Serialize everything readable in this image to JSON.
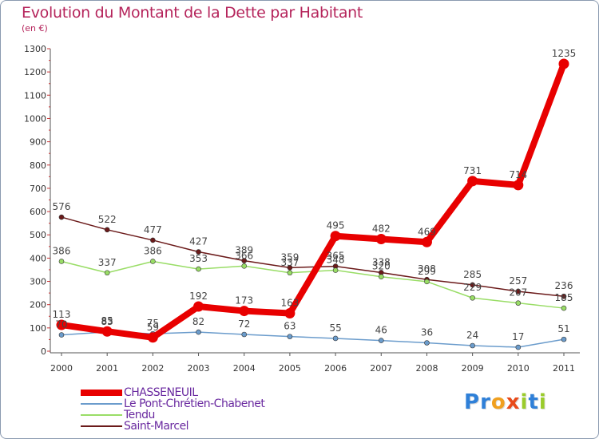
{
  "chart_data": {
    "type": "line",
    "title": "Evolution du Montant de la Dette par Habitant",
    "subtitle": "(en €)",
    "categories": [
      "2000",
      "2001",
      "2002",
      "2003",
      "2004",
      "2005",
      "2006",
      "2007",
      "2008",
      "2009",
      "2010",
      "2011"
    ],
    "ylim": [
      0,
      1300
    ],
    "yticks": [
      0,
      100,
      200,
      300,
      400,
      500,
      600,
      700,
      800,
      900,
      1000,
      1100,
      1200,
      1300
    ],
    "grid": false,
    "legend_position": "bottom-left",
    "series": [
      {
        "name": "CHASSENEUIL",
        "color": "#e80000",
        "values": [
          113,
          85,
          59,
          192,
          173,
          163,
          495,
          482,
          469,
          731,
          714,
          1235
        ]
      },
      {
        "name": "Le Pont-Chrétien-Chabenet",
        "color": "#6b9ccc",
        "values": [
          70,
          83,
          75,
          82,
          72,
          63,
          55,
          46,
          36,
          24,
          17,
          51
        ]
      },
      {
        "name": "Tendu",
        "color": "#99dd66",
        "values": [
          386,
          337,
          386,
          353,
          366,
          337,
          348,
          320,
          299,
          229,
          207,
          185
        ]
      },
      {
        "name": "Saint-Marcel",
        "color": "#6b1a1a",
        "values": [
          576,
          522,
          477,
          427,
          389,
          359,
          365,
          338,
          308,
          285,
          257,
          236
        ]
      }
    ],
    "data_labels": [
      {
        "series": 0,
        "labels": [
          "113",
          "85",
          "59",
          "192",
          "173",
          "163",
          "495",
          "482",
          "469",
          "731",
          "714",
          "1235"
        ]
      },
      {
        "series": 1,
        "labels": [
          "70",
          "83",
          "75",
          "82",
          "72",
          "63",
          "55",
          "46",
          "36",
          "24",
          "17",
          "51"
        ]
      },
      {
        "series": 2,
        "labels": [
          "386",
          "337",
          "386",
          "353",
          "366",
          "337",
          "348",
          "320",
          "299",
          "229",
          "207",
          "185"
        ]
      },
      {
        "series": 3,
        "labels": [
          "576",
          "522",
          "477",
          "427",
          "389",
          "359",
          "365",
          "338",
          "308",
          "285",
          "257",
          "236"
        ]
      }
    ]
  },
  "logo": {
    "text": "Proxiti",
    "letters": [
      "P",
      "r",
      "o",
      "x",
      "i",
      "t",
      "i"
    ],
    "colors": [
      "#2f80d8",
      "#2f80d8",
      "#f0a020",
      "#e84a1a",
      "#9bcc2c",
      "#2f80d8",
      "#9bcc2c"
    ]
  }
}
